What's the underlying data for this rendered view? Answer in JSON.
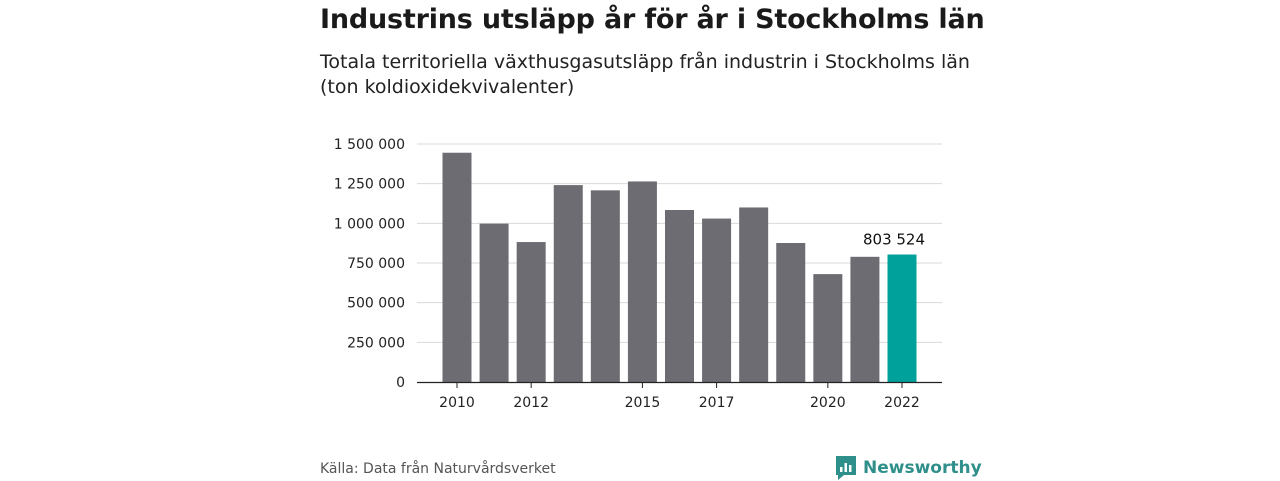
{
  "title": "Industrins utsläpp år för år i Stockholms län",
  "subtitle": "Totala territoriella växthusgasutsläpp från industrin i Stockholms län (ton koldioxidekvivalenter)",
  "source": "Källa: Data från Naturvårdsverket",
  "brand": {
    "name": "Newsworthy",
    "icon": "newsworthy-logo-icon"
  },
  "colors": {
    "bar": "#6d6c72",
    "highlight": "#00a19a",
    "grid": "#d9d9d9",
    "axis": "#222222"
  },
  "chart_data": {
    "type": "bar",
    "categories": [
      "2010",
      "2011",
      "2012",
      "2013",
      "2014",
      "2015",
      "2016",
      "2017",
      "2018",
      "2019",
      "2020",
      "2021",
      "2022"
    ],
    "values": [
      1445000,
      998000,
      882000,
      1241000,
      1208000,
      1264000,
      1084000,
      1030000,
      1100000,
      876000,
      680000,
      789000,
      803524
    ],
    "x_tick_labels": [
      "2010",
      "",
      "2012",
      "",
      "",
      "2015",
      "",
      "2017",
      "",
      "",
      "2020",
      "",
      "2022"
    ],
    "y_ticks": [
      0,
      250000,
      500000,
      750000,
      1000000,
      1250000,
      1500000
    ],
    "y_tick_labels": [
      "0",
      "250 000",
      "500 000",
      "750 000",
      "1 000 000",
      "1 250 000",
      "1 500 000"
    ],
    "ylim": [
      0,
      1500000
    ],
    "highlight_index": 12,
    "highlight_label": "803 524",
    "grid": true,
    "legend": "none"
  }
}
